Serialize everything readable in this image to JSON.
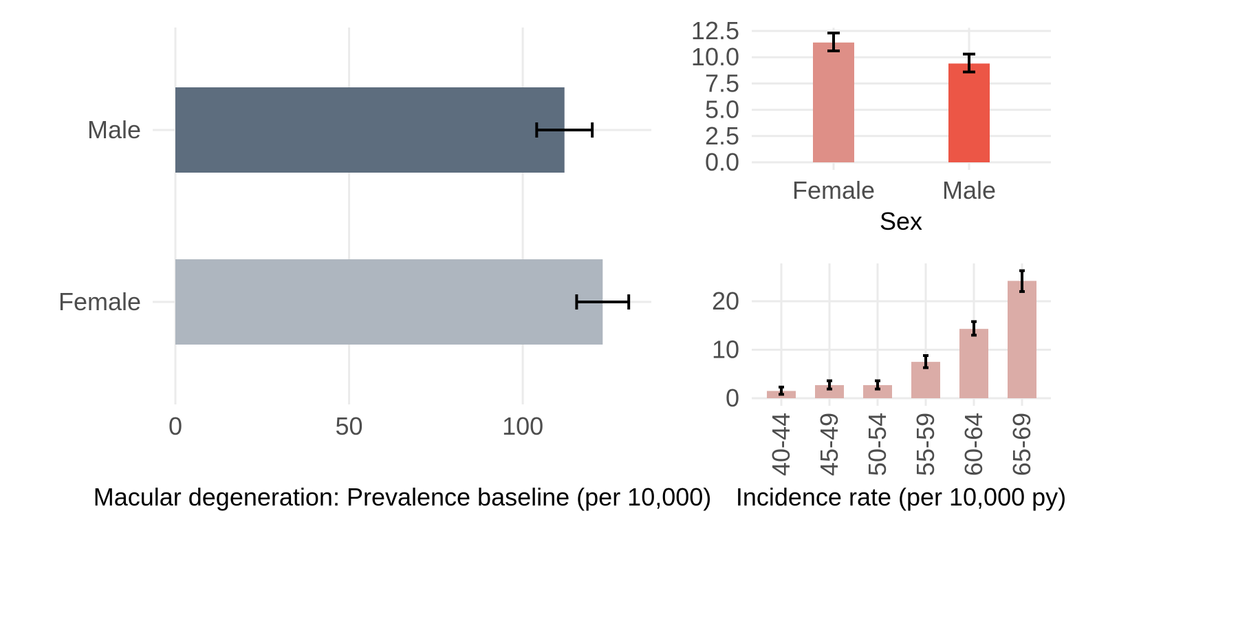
{
  "chart_data": [
    {
      "id": "prevalence",
      "type": "bar",
      "orientation": "horizontal",
      "title": "",
      "xlabel": "Macular degeneration: Prevalence baseline (per 10,000)",
      "ylabel": "",
      "xlim": [
        0,
        137
      ],
      "x_ticks": [
        0,
        50,
        100
      ],
      "categories": [
        "Male",
        "Female"
      ],
      "values": [
        112,
        123
      ],
      "error_low": [
        104,
        115.5
      ],
      "error_high": [
        120,
        130.5
      ],
      "colors": [
        "#5d6d7e",
        "#aeb6bf"
      ],
      "grid": true,
      "legend": "none"
    },
    {
      "id": "incidence_sex",
      "type": "bar",
      "title": "",
      "xlabel": "Sex",
      "ylabel": "",
      "ylim": [
        0,
        12.8
      ],
      "y_ticks": [
        0,
        2.5,
        5,
        7.5,
        10,
        12.5
      ],
      "y_tick_labels": [
        "0.0",
        "2.5",
        "5.0",
        "7.5",
        "10.0",
        "12.5"
      ],
      "categories": [
        "Female",
        "Male"
      ],
      "values": [
        11.4,
        9.4
      ],
      "error_low": [
        10.6,
        8.6
      ],
      "error_high": [
        12.3,
        10.3
      ],
      "colors": [
        "#de8f87",
        "#ec5646"
      ],
      "grid": true,
      "legend": "none"
    },
    {
      "id": "incidence_age",
      "type": "bar",
      "title": "",
      "xlabel": "Incidence rate (per 10,000 py)",
      "ylabel": "",
      "ylim": [
        0,
        27.5
      ],
      "y_ticks": [
        0,
        10,
        20
      ],
      "y_tick_labels": [
        "0",
        "10",
        "20"
      ],
      "categories": [
        "40-44",
        "45-49",
        "50-54",
        "55-59",
        "60-64",
        "65-69"
      ],
      "values": [
        1.5,
        2.7,
        2.7,
        7.5,
        14.3,
        24.2
      ],
      "error_low": [
        0.8,
        1.9,
        1.9,
        6.3,
        13.0,
        22.0
      ],
      "error_high": [
        2.3,
        3.6,
        3.6,
        8.8,
        15.8,
        26.3
      ],
      "color": "#dbaca7",
      "grid": true,
      "legend": "none"
    }
  ]
}
